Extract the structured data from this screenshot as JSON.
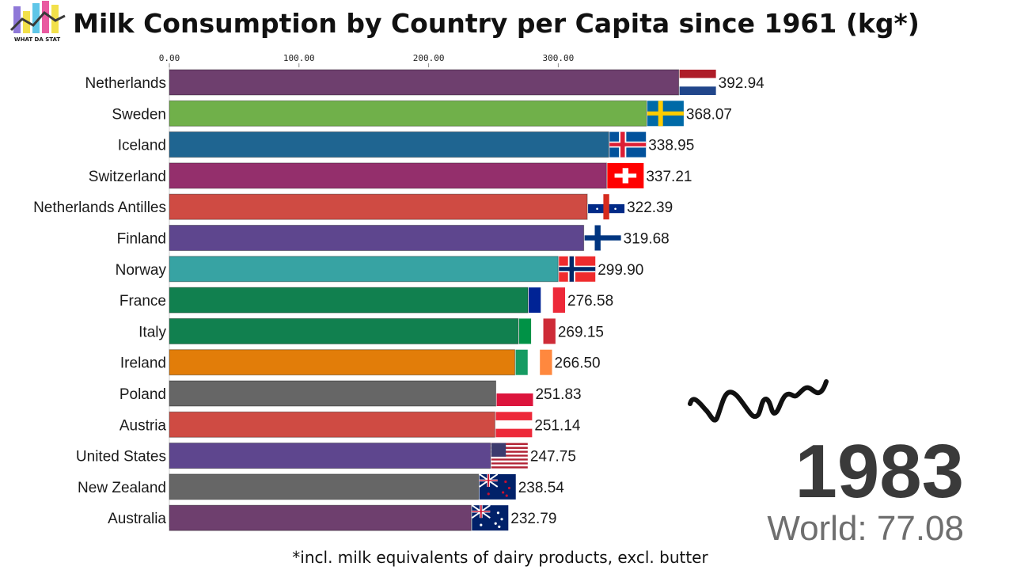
{
  "logo": {
    "text": "WHAT DA STAT",
    "icon": "bar-chart-logo-icon"
  },
  "chart_data": {
    "type": "bar",
    "orientation": "horizontal",
    "title": "Milk Consumption by Country per Capita since 1961 (kg*)",
    "xlabel": "",
    "ylabel": "",
    "xlim": [
      0,
      400
    ],
    "x_ticks": [
      0,
      100,
      200,
      300
    ],
    "x_tick_labels": [
      "0.00",
      "100.00",
      "200.00",
      "300.00"
    ],
    "categories": [
      "Netherlands",
      "Sweden",
      "Iceland",
      "Switzerland",
      "Netherlands Antilles",
      "Finland",
      "Norway",
      "France",
      "Italy",
      "Ireland",
      "Poland",
      "Austria",
      "United States",
      "New Zealand",
      "Australia"
    ],
    "values": [
      392.94,
      368.07,
      338.95,
      337.21,
      322.39,
      319.68,
      299.9,
      276.58,
      269.15,
      266.5,
      251.83,
      251.14,
      247.75,
      238.54,
      232.79
    ],
    "value_labels": [
      "392.94",
      "368.07",
      "338.95",
      "337.21",
      "322.39",
      "319.68",
      "299.90",
      "276.58",
      "269.15",
      "266.50",
      "251.83",
      "251.14",
      "247.75",
      "238.54",
      "232.79"
    ],
    "colors": [
      "#6e3f6e",
      "#70b04a",
      "#1f6591",
      "#942f6c",
      "#cf4b43",
      "#5e468e",
      "#37a3a3",
      "#11804f",
      "#11804f",
      "#e27d09",
      "#666666",
      "#cf4b43",
      "#5e468e",
      "#666666",
      "#6e3f6e"
    ],
    "flags": [
      "netherlands-flag-icon",
      "sweden-flag-icon",
      "iceland-flag-icon",
      "switzerland-flag-icon",
      "netherlands-antilles-flag-icon",
      "finland-flag-icon",
      "norway-flag-icon",
      "france-flag-icon",
      "italy-flag-icon",
      "ireland-flag-icon",
      "poland-flag-icon",
      "austria-flag-icon",
      "united-states-flag-icon",
      "new-zealand-flag-icon",
      "australia-flag-icon"
    ],
    "year": "1983",
    "world_label": "World: 77.08",
    "world_line": {
      "icon": "world-trend-line-icon",
      "color": "#111111"
    },
    "footnote": "*incl. milk equivalents of dairy products, excl. butter"
  }
}
